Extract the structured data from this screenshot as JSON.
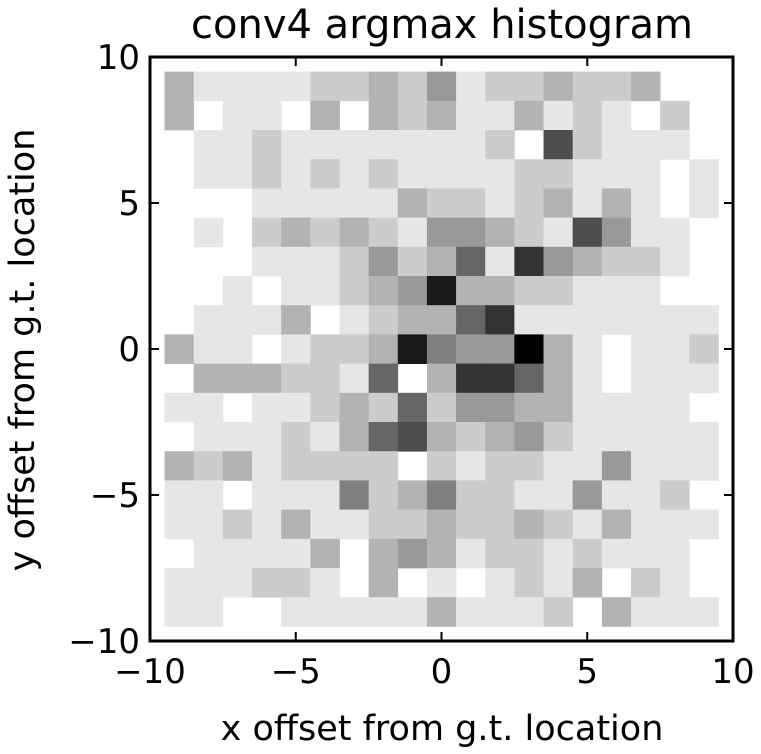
{
  "chart_data": {
    "type": "heatmap",
    "title": "conv4 argmax histogram",
    "xlabel": "x offset from g.t. location",
    "ylabel": "y offset from g.t. location",
    "xlim": [
      -10,
      10
    ],
    "ylim": [
      -10,
      10
    ],
    "x_ticks": [
      -10,
      -5,
      0,
      5,
      10
    ],
    "y_ticks": [
      -10,
      -5,
      0,
      5,
      10
    ],
    "x_tick_labels": [
      "−10",
      "−5",
      "0",
      "5",
      "10"
    ],
    "y_tick_labels": [
      "−10",
      "−5",
      "0",
      "5",
      "10"
    ],
    "grid": false,
    "colormap": "gray_r",
    "x_range": [
      -9,
      9
    ],
    "y_range_top_to_bottom": [
      9,
      -9
    ],
    "values": [
      [
        0.3,
        0.1,
        0.1,
        0.1,
        0.1,
        0.2,
        0.2,
        0.3,
        0.2,
        0.4,
        0.1,
        0.2,
        0.2,
        0.3,
        0.2,
        0.2,
        0.3,
        0.0,
        0.0
      ],
      [
        0.3,
        0.0,
        0.1,
        0.1,
        0.0,
        0.3,
        0.0,
        0.3,
        0.2,
        0.3,
        0.1,
        0.1,
        0.3,
        0.1,
        0.2,
        0.1,
        0.0,
        0.2,
        0.0
      ],
      [
        0.0,
        0.1,
        0.1,
        0.2,
        0.1,
        0.1,
        0.1,
        0.1,
        0.1,
        0.1,
        0.1,
        0.2,
        0.0,
        0.7,
        0.2,
        0.1,
        0.1,
        0.1,
        0.0
      ],
      [
        0.0,
        0.1,
        0.1,
        0.2,
        0.1,
        0.2,
        0.1,
        0.2,
        0.1,
        0.1,
        0.1,
        0.1,
        0.2,
        0.2,
        0.1,
        0.1,
        0.1,
        0.0,
        0.1
      ],
      [
        0.0,
        0.0,
        0.0,
        0.1,
        0.1,
        0.1,
        0.1,
        0.1,
        0.3,
        0.2,
        0.2,
        0.1,
        0.2,
        0.3,
        0.1,
        0.3,
        0.1,
        0.0,
        0.1
      ],
      [
        0.0,
        0.1,
        0.0,
        0.2,
        0.3,
        0.2,
        0.3,
        0.2,
        0.1,
        0.4,
        0.4,
        0.3,
        0.2,
        0.1,
        0.7,
        0.4,
        0.1,
        0.1,
        0.0
      ],
      [
        0.0,
        0.0,
        0.0,
        0.1,
        0.1,
        0.1,
        0.2,
        0.4,
        0.2,
        0.3,
        0.6,
        0.1,
        0.8,
        0.4,
        0.3,
        0.2,
        0.2,
        0.1,
        0.0
      ],
      [
        0.0,
        0.0,
        0.1,
        0.0,
        0.1,
        0.1,
        0.2,
        0.3,
        0.4,
        0.9,
        0.3,
        0.3,
        0.2,
        0.2,
        0.1,
        0.1,
        0.1,
        0.0,
        0.0
      ],
      [
        0.0,
        0.1,
        0.1,
        0.1,
        0.3,
        0.0,
        0.1,
        0.2,
        0.3,
        0.3,
        0.6,
        0.8,
        0.1,
        0.1,
        0.1,
        0.1,
        0.1,
        0.1,
        0.1
      ],
      [
        0.3,
        0.1,
        0.1,
        0.0,
        0.1,
        0.2,
        0.2,
        0.3,
        0.9,
        0.5,
        0.4,
        0.4,
        1.0,
        0.3,
        0.1,
        0.0,
        0.1,
        0.1,
        0.2
      ],
      [
        0.0,
        0.3,
        0.3,
        0.3,
        0.2,
        0.2,
        0.1,
        0.6,
        0.0,
        0.3,
        0.8,
        0.8,
        0.6,
        0.3,
        0.1,
        0.0,
        0.1,
        0.1,
        0.1
      ],
      [
        0.1,
        0.1,
        0.0,
        0.1,
        0.1,
        0.2,
        0.3,
        0.2,
        0.6,
        0.2,
        0.4,
        0.4,
        0.3,
        0.3,
        0.1,
        0.1,
        0.1,
        0.1,
        0.0
      ],
      [
        0.0,
        0.1,
        0.1,
        0.1,
        0.2,
        0.1,
        0.3,
        0.6,
        0.7,
        0.3,
        0.2,
        0.3,
        0.4,
        0.2,
        0.1,
        0.1,
        0.1,
        0.1,
        0.1
      ],
      [
        0.3,
        0.2,
        0.3,
        0.1,
        0.2,
        0.2,
        0.2,
        0.2,
        0.0,
        0.2,
        0.1,
        0.2,
        0.2,
        0.1,
        0.1,
        0.4,
        0.1,
        0.1,
        0.1
      ],
      [
        0.1,
        0.1,
        0.0,
        0.1,
        0.1,
        0.1,
        0.5,
        0.2,
        0.3,
        0.5,
        0.2,
        0.2,
        0.1,
        0.1,
        0.4,
        0.1,
        0.1,
        0.2,
        0.0
      ],
      [
        0.1,
        0.1,
        0.2,
        0.1,
        0.3,
        0.1,
        0.1,
        0.2,
        0.2,
        0.3,
        0.2,
        0.2,
        0.3,
        0.2,
        0.1,
        0.3,
        0.1,
        0.1,
        0.1
      ],
      [
        0.0,
        0.1,
        0.1,
        0.1,
        0.1,
        0.3,
        0.0,
        0.3,
        0.4,
        0.3,
        0.1,
        0.2,
        0.2,
        0.1,
        0.2,
        0.1,
        0.1,
        0.1,
        0.0
      ],
      [
        0.1,
        0.1,
        0.1,
        0.2,
        0.2,
        0.1,
        0.0,
        0.3,
        0.0,
        0.1,
        0.0,
        0.1,
        0.2,
        0.1,
        0.3,
        0.0,
        0.2,
        0.1,
        0.0
      ],
      [
        0.1,
        0.1,
        0.0,
        0.0,
        0.1,
        0.1,
        0.1,
        0.1,
        0.1,
        0.3,
        0.1,
        0.1,
        0.1,
        0.2,
        0.0,
        0.3,
        0.1,
        0.1,
        0.1
      ]
    ]
  }
}
